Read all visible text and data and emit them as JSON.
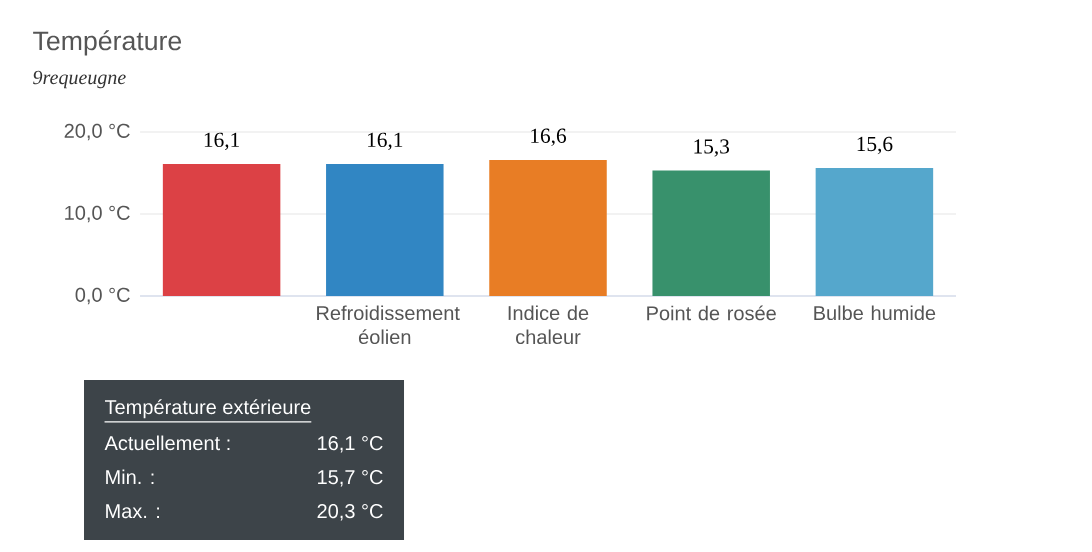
{
  "chart_data": {
    "type": "bar",
    "title": "Température",
    "subtitle": "9requeugne",
    "categories": [
      null,
      "Refroidissement éolien",
      "Indice de chaleur",
      "Point de rosée",
      "Bulbe humide"
    ],
    "values": [
      16.1,
      16.1,
      16.6,
      15.3,
      15.6
    ],
    "colors": [
      "#dc4145",
      "#3186c3",
      "#e87d25",
      "#38916c",
      "#55a7cc"
    ],
    "value_labels": [
      "16,1",
      "16,1",
      "16,6",
      "15,3",
      "15,6"
    ],
    "ylim": [
      0,
      20
    ],
    "yticks": [
      {
        "value": 0,
        "label": "0,0 °C"
      },
      {
        "value": 10,
        "label": "10,0 °C"
      },
      {
        "value": 20,
        "label": "20,0 °C"
      }
    ],
    "grid": "y",
    "annotations": [
      "Température extérieure",
      "Actuellement :",
      "16,1 °C",
      "Min. :",
      "15,7 °C",
      "Max. :",
      "20,3 °C"
    ]
  }
}
